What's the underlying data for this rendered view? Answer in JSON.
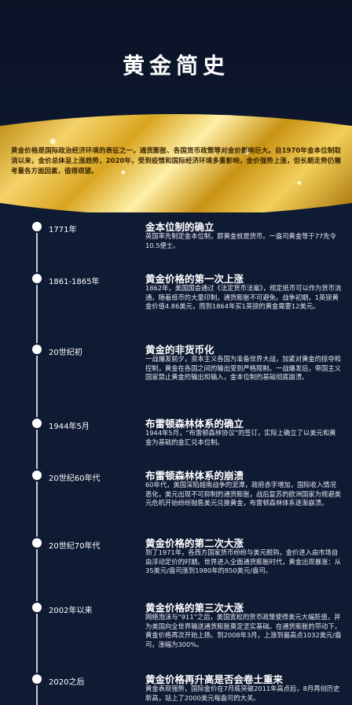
{
  "title": "黄金简史",
  "intro": "黄金价格是国际政治经济环境的表征之一，通货膨胀、各国货币政策等对金价影响巨大。自1970年金本位制取消以来，金价总体呈上涨趋势，2020年，受到疫情和国际经济环境多重影响，金价强势上涨，但长期走势仍需考量各方面因素，值得观望。",
  "timeline": [
    {
      "date": "1771年",
      "title": "金本位制的确立",
      "desc": "英国率先制定金本位制，即黄金就是货币。一盎司黄金等于77先令10.5便士。"
    },
    {
      "date": "1861-1865年",
      "title": "黄金价格的第一次上涨",
      "desc": "1862年，美国国会通过《法定货币法案》，规定纸币可以作为货币流通。随着纸币的大量印制，通货膨胀不可避免。战争初期，1英镑黄金价值4.86美元，而到1864年买1英镑的黄金需要12美元。"
    },
    {
      "date": "20世纪初",
      "title": "黄金的非货币化",
      "desc": "一战爆发前夕，资本主义各国为准备世界大战，加紧对黄金的掠夺和控制，黄金在各国之间的输出受到严格限制。一战爆发后，帝国主义国家禁止黄金的输出和输入，金本位制的基础彻底崩溃。"
    },
    {
      "date": "1944年5月",
      "title": "布雷顿森林体系的确立",
      "desc": "1944年5月，“布雷顿森林协议”的签订，实际上确立了以美元和黄金为基础的金汇兑本位制。"
    },
    {
      "date": "20世纪60年代",
      "title": "布雷顿森林体系的崩溃",
      "desc": "60年代，美国深陷越南战争的泥潭，政府赤字增加，国际收入情况恶化，美元出现不可抑制的通货膨胀，战后复苏的欧洲国家为规避美元危机开始纷纷抛售美元兑换黄金，布雷顿森林体系逐渐崩溃。"
    },
    {
      "date": "20世纪70年代",
      "title": "黄金价格的第二次大涨",
      "desc": "到了1971年，各西方国家货币纷纷与美元脱钩，金价进入由市场自由浮动定价的时期。世界进入全面通货膨胀时代，黄金出现暴涨：从35美元/盎司涨到1980年的850美元/盎司。"
    },
    {
      "date": "2002年以来",
      "title": "黄金价格的第三次大涨",
      "desc": "网络泡沫与“911”之后，美国宽松的货币政策使得美元大幅贬值，并为美国向全世界输送通货膨胀奠定坚实基础。在通货膨胀的带动下，黄金价格再次开始上扬。到2008年3月，上涨到最高点1032美元/盎司，涨幅为300%。"
    },
    {
      "date": "2020之后",
      "title": "黄金价格再升高是否会卷土重来",
      "desc": "黄金表现强势，国际金价在7月底突破2011年高点后，8月再创历史新高，站上了2000美元每盎司的大关。"
    }
  ]
}
